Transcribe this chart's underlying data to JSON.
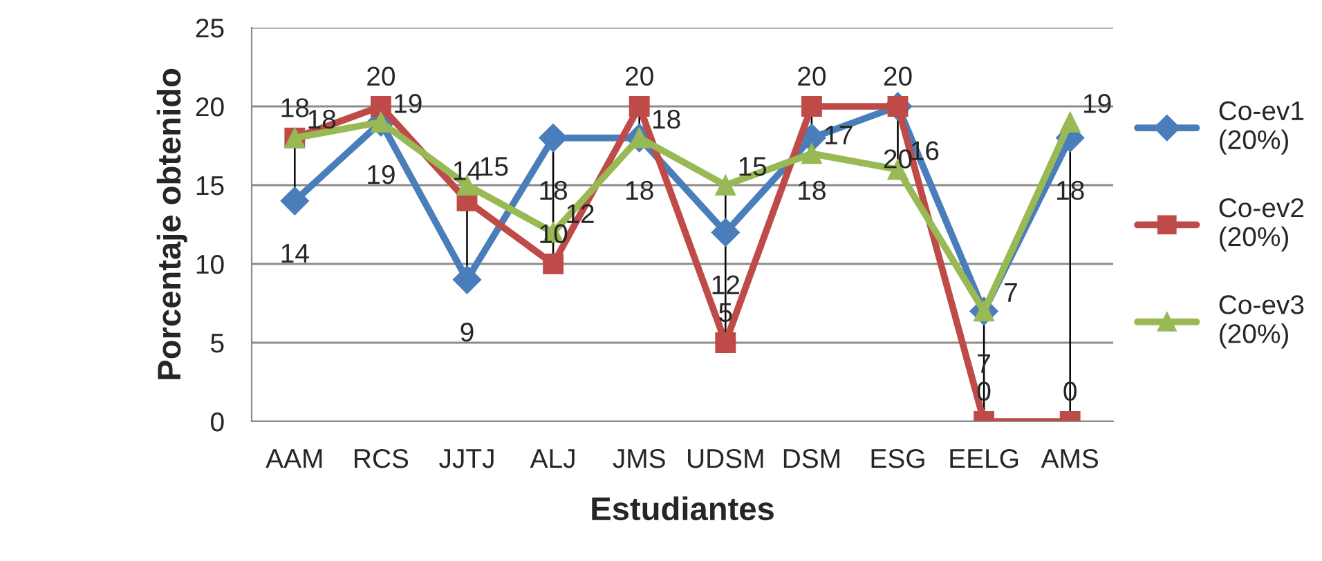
{
  "chart_data": {
    "type": "line",
    "xlabel": "Estudiantes",
    "ylabel": "Porcentaje obtenido",
    "categories": [
      "AAM",
      "RCS",
      "JJTJ",
      "ALJ",
      "JMS",
      "UDSM",
      "DSM",
      "ESG",
      "EELG",
      "AMS"
    ],
    "series": [
      {
        "name": "Co-ev1\n(20%)",
        "color": "#4a7ebb",
        "marker": "diamond",
        "values": [
          14,
          19,
          9,
          18,
          18,
          12,
          18,
          20,
          7,
          18
        ]
      },
      {
        "name": "Co-ev2\n(20%)",
        "color": "#be4b48",
        "marker": "square",
        "values": [
          18,
          20,
          14,
          10,
          20,
          5,
          20,
          20,
          0,
          0
        ]
      },
      {
        "name": "Co-ev3\n(20%)",
        "color": "#98b954",
        "marker": "triangle",
        "values": [
          18,
          19,
          15,
          12,
          18,
          15,
          17,
          16,
          7,
          19
        ]
      }
    ],
    "ylim": [
      0,
      25
    ],
    "yticks": [
      0,
      5,
      10,
      15,
      20,
      25
    ],
    "grid": "y",
    "legend": "right",
    "data_labels": true
  }
}
